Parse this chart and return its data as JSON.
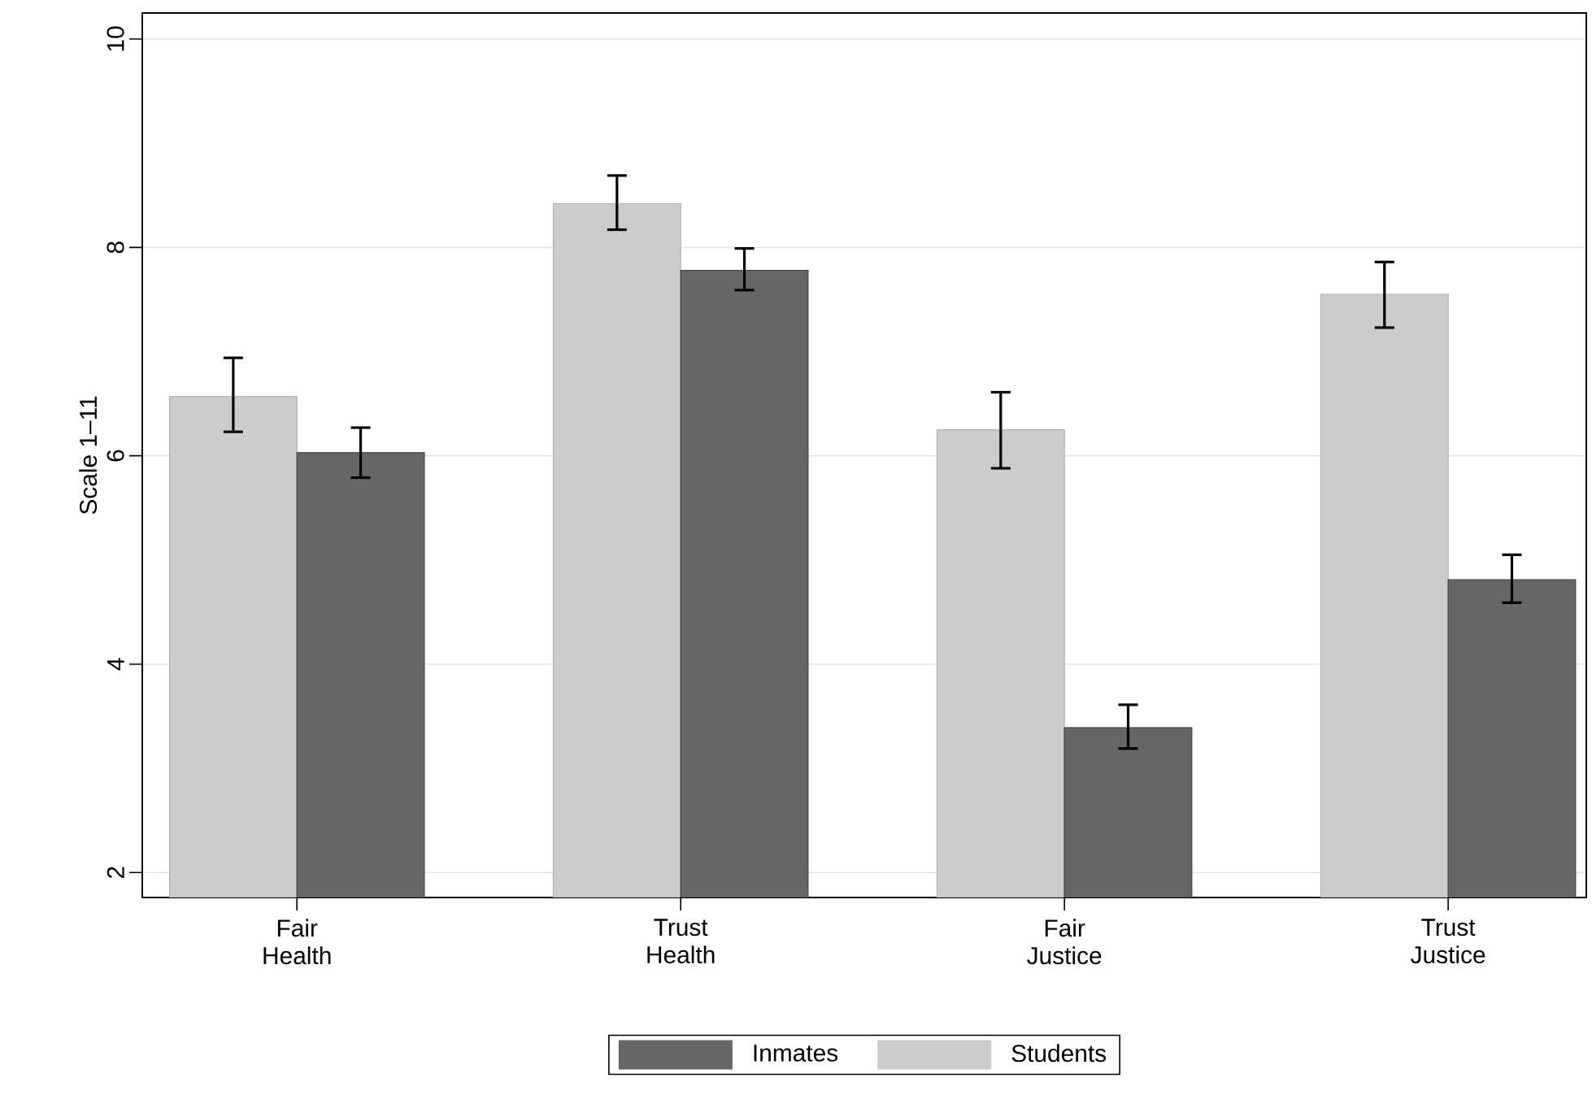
{
  "chart_data": {
    "type": "bar",
    "ylabel": "Scale 1–11",
    "categories": [
      "Fair\nHealth",
      "Trust\nHealth",
      "Fair\nJustice",
      "Trust\nJustice"
    ],
    "series": [
      {
        "name": "Students",
        "color": "#cccccc",
        "values": [
          6.57,
          8.42,
          6.25,
          7.55
        ],
        "errors": [
          [
            6.23,
            6.94
          ],
          [
            8.17,
            8.69
          ],
          [
            5.88,
            6.61
          ],
          [
            7.23,
            7.86
          ]
        ]
      },
      {
        "name": "Inmates",
        "color": "#666666",
        "values": [
          6.03,
          7.78,
          3.39,
          4.81
        ],
        "errors": [
          [
            5.79,
            6.27
          ],
          [
            7.59,
            7.99
          ],
          [
            3.19,
            3.61
          ],
          [
            4.59,
            5.05
          ]
        ]
      }
    ],
    "ylim": [
      1.76,
      10.25
    ],
    "yticks": [
      2,
      4,
      6,
      8,
      10
    ],
    "grid": "y",
    "legend": "bottom"
  }
}
